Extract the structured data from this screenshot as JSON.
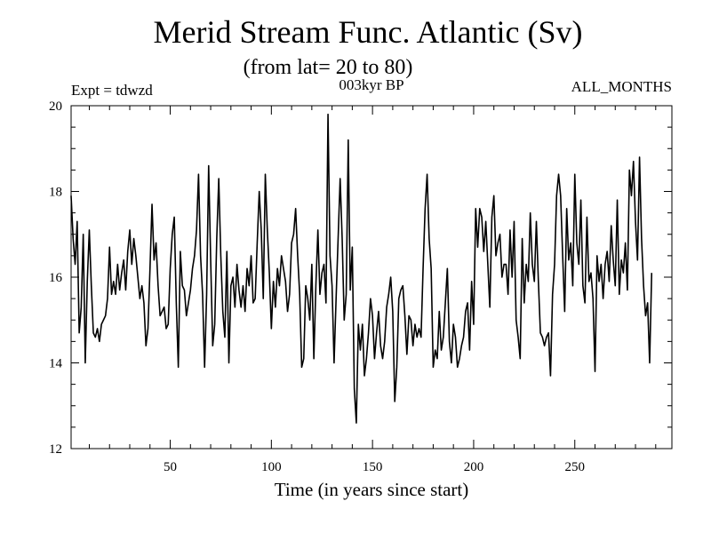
{
  "chart_data": {
    "type": "line",
    "title": "Merid Stream Func. Atlantic (Sv)",
    "subtitle": "(from lat= 20 to 80)",
    "experiment_label": "Expt = tdwzd",
    "period_label": "003kyr BP",
    "months_label": "ALL_MONTHS",
    "xlabel": "Time (in years since start)",
    "ylabel": "",
    "xlim": [
      1,
      298
    ],
    "ylim": [
      12,
      20
    ],
    "xticks": [
      50,
      100,
      150,
      200,
      250
    ],
    "yticks": [
      12,
      14,
      16,
      18,
      20
    ],
    "grid": false,
    "line_color": "#000000",
    "x_start": 1,
    "x_step": 1,
    "series": [
      {
        "name": "Merid Stream Func. Atlantic",
        "values": [
          17.9,
          16.9,
          16.3,
          17.3,
          14.7,
          15.3,
          17.0,
          14.0,
          15.9,
          17.1,
          15.8,
          14.7,
          14.6,
          14.8,
          14.5,
          14.9,
          15.0,
          15.1,
          15.5,
          16.7,
          15.6,
          15.9,
          15.6,
          16.3,
          15.7,
          16.1,
          16.4,
          15.7,
          16.6,
          17.1,
          16.3,
          16.9,
          16.5,
          16.0,
          15.5,
          15.8,
          15.4,
          14.4,
          14.8,
          16.2,
          17.7,
          16.4,
          16.8,
          15.8,
          15.1,
          15.2,
          15.3,
          14.8,
          14.9,
          16.2,
          17.0,
          17.4,
          15.4,
          13.9,
          16.6,
          15.8,
          15.7,
          15.1,
          15.4,
          15.7,
          16.2,
          16.5,
          17.1,
          18.4,
          16.5,
          15.6,
          13.9,
          15.6,
          18.6,
          16.4,
          14.4,
          14.9,
          16.9,
          18.3,
          16.5,
          15.2,
          14.6,
          16.6,
          14.0,
          15.8,
          16.0,
          15.3,
          16.3,
          15.7,
          15.3,
          15.8,
          15.2,
          16.2,
          15.8,
          16.5,
          15.4,
          15.5,
          16.8,
          18.0,
          17.1,
          15.5,
          18.4,
          17.1,
          16.1,
          14.8,
          15.9,
          15.3,
          16.2,
          15.8,
          16.5,
          16.2,
          15.9,
          15.2,
          15.6,
          16.8,
          17.0,
          17.6,
          16.5,
          15.6,
          13.9,
          14.1,
          15.8,
          15.5,
          15.0,
          16.3,
          14.1,
          15.8,
          17.1,
          15.6,
          16.1,
          16.3,
          15.4,
          19.8,
          16.5,
          15.8,
          14.0,
          15.5,
          16.9,
          18.3,
          16.9,
          15.0,
          15.6,
          19.2,
          15.7,
          16.7,
          13.4,
          12.6,
          14.9,
          14.3,
          14.9,
          13.7,
          14.1,
          14.7,
          15.5,
          15.1,
          14.1,
          14.7,
          15.2,
          14.4,
          14.1,
          14.5,
          15.3,
          15.6,
          16.0,
          15.2,
          13.1,
          13.9,
          15.5,
          15.7,
          15.8,
          15.1,
          14.2,
          15.1,
          15.0,
          14.4,
          14.9,
          14.6,
          14.8,
          14.6,
          16.2,
          17.6,
          18.4,
          16.9,
          16.2,
          13.9,
          14.3,
          14.1,
          15.2,
          14.3,
          14.6,
          15.4,
          16.2,
          14.5,
          14.0,
          14.9,
          14.6,
          13.9,
          14.1,
          14.4,
          14.6,
          15.2,
          15.4,
          14.3,
          15.9,
          14.9,
          17.6,
          16.7,
          17.6,
          17.4,
          16.6,
          17.3,
          16.3,
          15.3,
          17.4,
          17.9,
          16.5,
          16.8,
          17.0,
          16.0,
          16.3,
          16.3,
          15.6,
          17.1,
          16.0,
          17.3,
          15.0,
          14.6,
          14.1,
          16.9,
          15.4,
          16.3,
          15.9,
          17.5,
          16.3,
          15.9,
          17.3,
          15.9,
          14.7,
          14.6,
          14.4,
          14.6,
          14.7,
          13.7,
          15.6,
          16.3,
          17.9,
          18.4,
          17.9,
          16.5,
          15.2,
          17.6,
          16.4,
          16.8,
          15.8,
          18.4,
          16.8,
          16.3,
          17.8,
          15.8,
          15.4,
          17.4,
          15.9,
          16.1,
          15.5,
          13.8,
          16.5,
          15.9,
          16.3,
          15.5,
          16.3,
          16.6,
          15.9,
          17.2,
          16.4,
          15.8,
          17.8,
          15.6,
          16.4,
          16.1,
          16.8,
          15.7,
          18.5,
          17.9,
          18.7,
          17.3,
          16.4,
          18.8,
          16.9,
          15.8,
          15.1,
          15.4,
          14.0,
          16.1
        ]
      }
    ]
  }
}
